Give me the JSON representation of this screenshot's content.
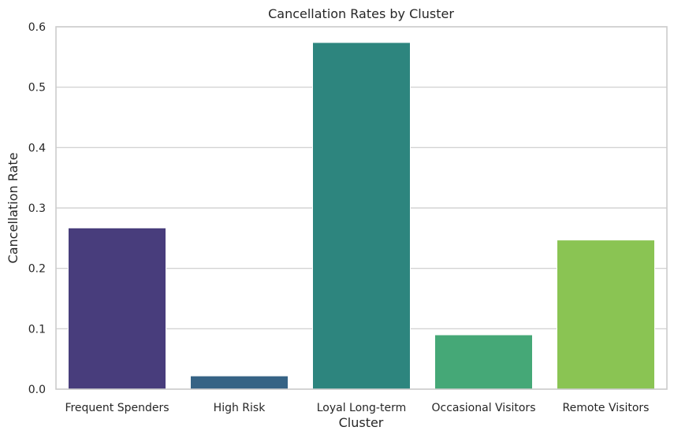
{
  "chart_data": {
    "type": "bar",
    "title": "Cancellation Rates by Cluster",
    "xlabel": "Cluster",
    "ylabel": "Cancellation Rate",
    "categories": [
      "Frequent Spenders",
      "High Risk",
      "Loyal Long-term",
      "Occasional Visitors",
      "Remote Visitors"
    ],
    "values": [
      0.267,
      0.022,
      0.574,
      0.09,
      0.247
    ],
    "colors": [
      "#483d7c",
      "#366385",
      "#2d857e",
      "#45a877",
      "#8ac453"
    ],
    "ylim": [
      0,
      0.6
    ],
    "yticks": [
      0.0,
      0.1,
      0.2,
      0.3,
      0.4,
      0.5,
      0.6
    ],
    "ytick_labels": [
      "0.0",
      "0.1",
      "0.2",
      "0.3",
      "0.4",
      "0.5",
      "0.6"
    ],
    "grid": "horizontal",
    "legend": "none"
  }
}
